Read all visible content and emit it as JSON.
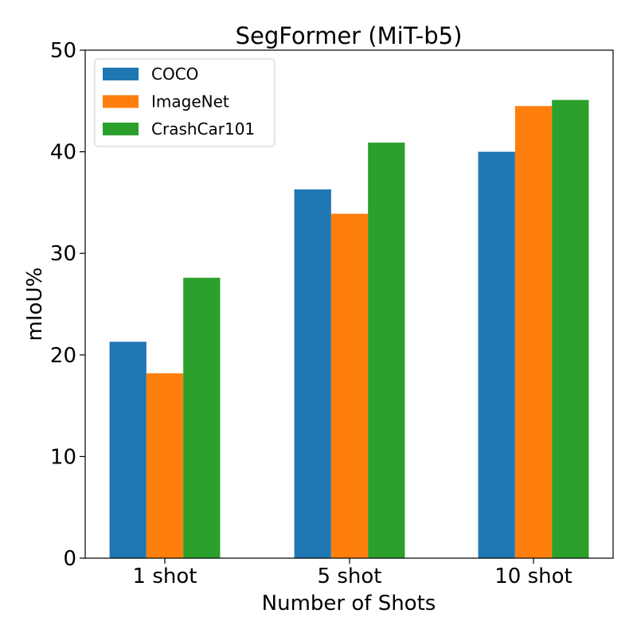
{
  "chart_data": {
    "type": "bar",
    "title": "SegFormer (MiT-b5)",
    "xlabel": "Number of Shots",
    "ylabel": "mIoU%",
    "categories": [
      "1 shot",
      "5 shot",
      "10 shot"
    ],
    "series": [
      {
        "name": "COCO",
        "color": "#1f77b4",
        "values": [
          21.3,
          36.3,
          40.0
        ]
      },
      {
        "name": "ImageNet",
        "color": "#ff7f0e",
        "values": [
          18.2,
          33.9,
          44.5
        ]
      },
      {
        "name": "CrashCar101",
        "color": "#2ca02c",
        "values": [
          27.6,
          40.9,
          45.1
        ]
      }
    ],
    "ylim": [
      0,
      50
    ],
    "yticks": [
      0,
      10,
      20,
      30,
      40,
      50
    ],
    "legend_position": "top-left",
    "grid": false
  }
}
